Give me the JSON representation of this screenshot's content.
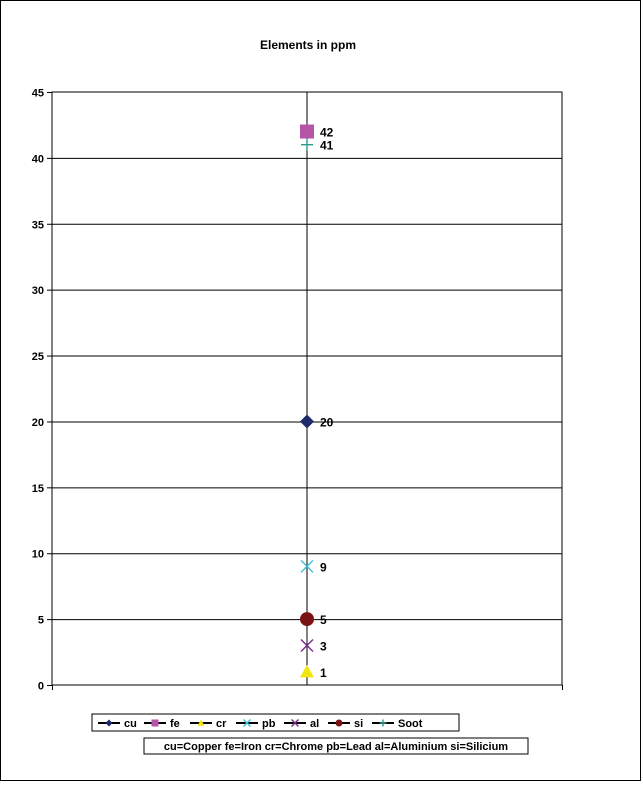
{
  "chart_data": {
    "type": "scatter",
    "title": "Elements in ppm",
    "xlabel": "",
    "ylabel": "",
    "ylim": [
      0,
      45
    ],
    "yticks": [
      0,
      5,
      10,
      15,
      20,
      25,
      30,
      35,
      40,
      45
    ],
    "grid": true,
    "legend_position": "bottom",
    "series": [
      {
        "name": "cu",
        "value": 20,
        "color": "#1F2A6B",
        "marker": "diamond-icon"
      },
      {
        "name": "fe",
        "value": 42,
        "color": "#B655A8",
        "marker": "square-icon"
      },
      {
        "name": "cr",
        "value": 1,
        "color": "#F2E50B",
        "marker": "triangle-icon"
      },
      {
        "name": "pb",
        "value": 9,
        "color": "#42C0D8",
        "marker": "x-icon"
      },
      {
        "name": "al",
        "value": 3,
        "color": "#7A2D8A",
        "marker": "x-icon"
      },
      {
        "name": "si",
        "value": 5,
        "color": "#7A1313",
        "marker": "circle-icon"
      },
      {
        "name": "Soot",
        "value": 41,
        "color": "#2E9A8C",
        "marker": "plus-icon"
      }
    ],
    "note": "cu=Copper fe=Iron cr=Chrome pb=Lead al=Aluminium si=Silicium"
  }
}
